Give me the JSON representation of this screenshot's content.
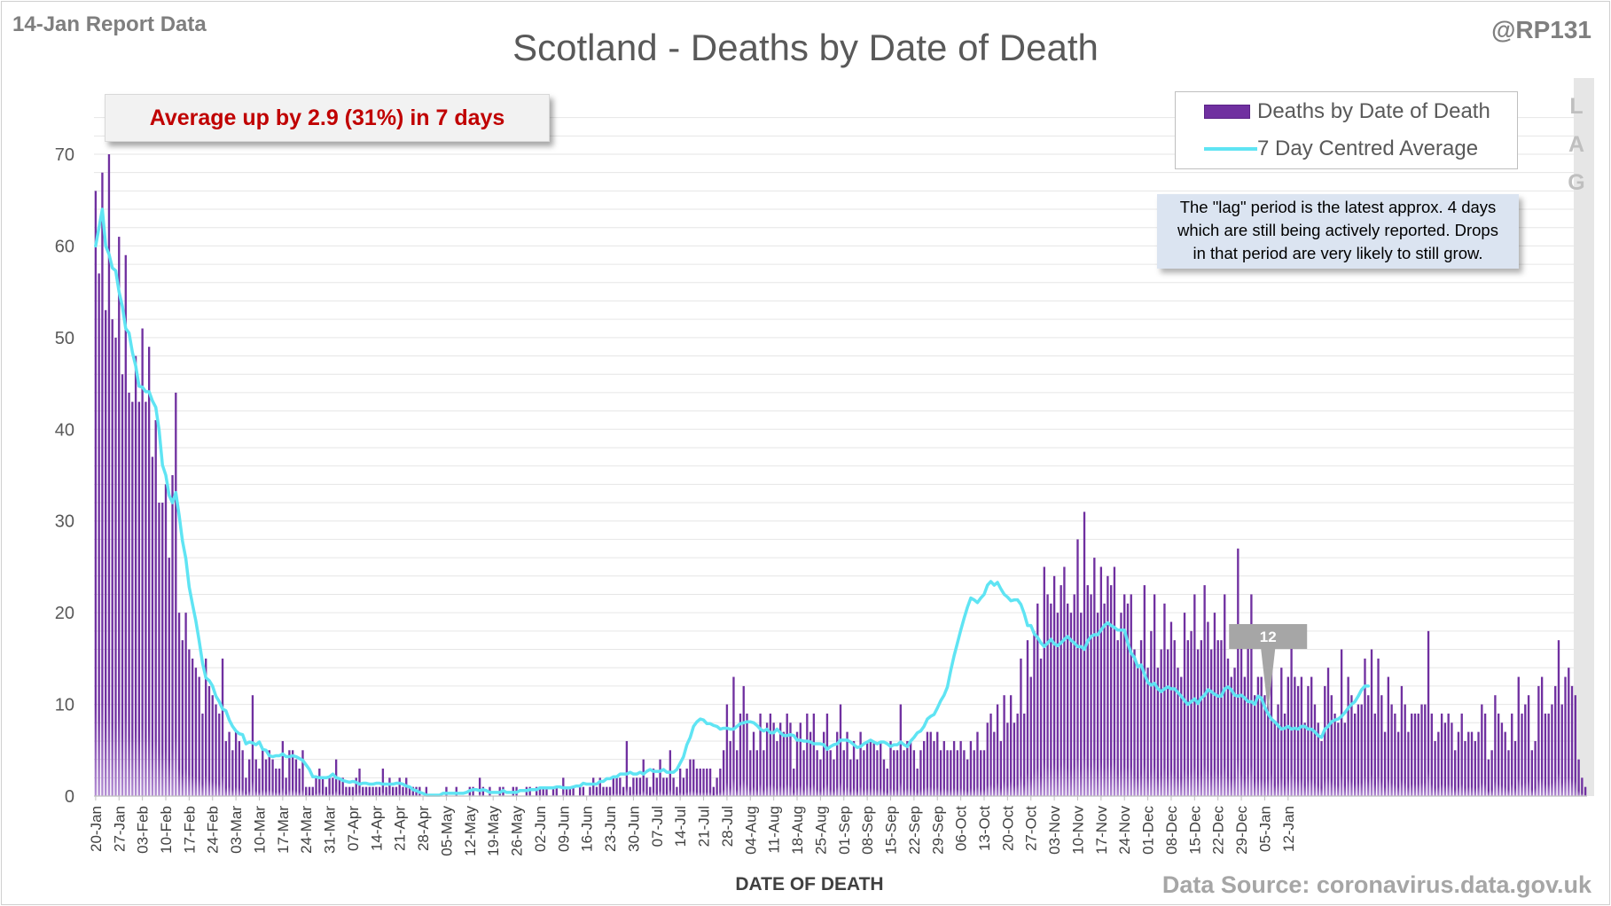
{
  "report_label": "14-Jan Report Data",
  "handle": "@RP131",
  "headline": "Average up by 2.9 (31%) in 7 days",
  "legend": {
    "bar_label": "Deaths by Date of Death",
    "line_label": "7 Day Centred Average"
  },
  "lag_note": {
    "lines": [
      "The \"lag\" period is the latest approx. 4 days",
      "which are still being actively reported. Drops",
      "in that period are very likely to still grow."
    ],
    "letters": [
      "L",
      "A",
      "G"
    ]
  },
  "source": "Data Source: coronavirus.data.gov.uk",
  "colors": {
    "bar": "#7030a0",
    "bar_light": "#b48fd4",
    "line": "#5fe4f3",
    "headline": "#c00000",
    "lag_band": "#e6e6e6",
    "callout": "#a6a6a6"
  },
  "chart_data": {
    "type": "bar",
    "title": "Scotland - Deaths by Date of Death",
    "xlabel": "DATE OF DEATH",
    "ylabel": "",
    "ylim": [
      0,
      75
    ],
    "yticks": [
      0,
      10,
      20,
      30,
      40,
      50,
      60,
      70
    ],
    "grid": true,
    "legend_position": "top-right",
    "x_tick_labels": [
      "20-Jan",
      "27-Jan",
      "03-Feb",
      "10-Feb",
      "17-Feb",
      "24-Feb",
      "03-Mar",
      "10-Mar",
      "17-Mar",
      "24-Mar",
      "31-Mar",
      "07-Apr",
      "14-Apr",
      "21-Apr",
      "28-Apr",
      "05-May",
      "12-May",
      "19-May",
      "26-May",
      "02-Jun",
      "09-Jun",
      "16-Jun",
      "23-Jun",
      "30-Jun",
      "07-Jul",
      "14-Jul",
      "21-Jul",
      "28-Jul",
      "04-Aug",
      "11-Aug",
      "18-Aug",
      "25-Aug",
      "01-Sep",
      "08-Sep",
      "15-Sep",
      "22-Sep",
      "29-Sep",
      "06-Oct",
      "13-Oct",
      "20-Oct",
      "27-Oct",
      "03-Nov",
      "10-Nov",
      "17-Nov",
      "24-Nov",
      "01-Dec",
      "08-Dec",
      "15-Dec",
      "22-Dec",
      "29-Dec",
      "05-Jan",
      "12-Jan"
    ],
    "start_date": "20-Jan",
    "lag_days": 4,
    "callout": {
      "label": "12",
      "date": "05-Jan"
    },
    "series": [
      {
        "name": "Deaths by Date of Death",
        "type": "bar",
        "values": [
          66,
          57,
          68,
          53,
          70,
          52,
          50,
          61,
          46,
          59,
          44,
          43,
          48,
          43,
          51,
          43,
          49,
          37,
          41,
          32,
          32,
          34,
          26,
          35,
          44,
          20,
          17,
          20,
          16,
          15,
          14,
          13,
          9,
          15,
          12,
          11,
          10,
          9,
          15,
          6,
          7,
          5,
          7,
          6,
          5,
          2,
          4,
          11,
          4,
          3,
          5,
          4,
          5,
          4,
          3,
          3,
          6,
          2,
          5,
          5,
          4,
          3,
          5,
          1,
          1,
          1,
          2,
          3,
          2,
          1,
          2,
          2,
          4,
          2,
          2,
          1,
          1,
          1,
          2,
          3,
          1,
          1,
          1,
          1,
          1,
          1,
          3,
          1,
          2,
          1,
          1,
          2,
          1,
          2,
          1,
          1,
          1,
          1,
          0,
          1,
          0,
          0,
          0,
          0,
          0,
          1,
          0,
          0,
          1,
          0,
          0,
          0,
          1,
          1,
          0,
          2,
          1,
          0,
          1,
          0,
          0,
          1,
          1,
          0,
          0,
          1,
          1,
          0,
          0,
          1,
          1,
          0,
          1,
          1,
          1,
          1,
          0,
          1,
          1,
          0,
          2,
          1,
          1,
          1,
          0,
          1,
          1,
          0,
          1,
          2,
          1,
          2,
          1,
          1,
          1,
          2,
          2,
          2,
          1,
          6,
          1,
          2,
          2,
          2,
          4,
          2,
          1,
          3,
          2,
          4,
          2,
          2,
          5,
          2,
          1,
          3,
          2,
          3,
          4,
          4,
          3,
          3,
          3,
          3,
          3,
          1,
          2,
          3,
          5,
          10,
          6,
          13,
          5,
          9,
          12,
          9,
          5,
          7,
          5,
          9,
          5,
          8,
          9,
          8,
          6,
          8,
          7,
          9,
          8,
          3,
          7,
          8,
          5,
          9,
          7,
          9,
          5,
          4,
          7,
          9,
          5,
          4,
          7,
          10,
          5,
          7,
          4,
          6,
          4,
          7,
          5,
          6,
          6,
          6,
          5,
          6,
          4,
          3,
          6,
          5,
          5,
          10,
          5,
          6,
          6,
          5,
          3,
          5,
          6,
          7,
          7,
          6,
          7,
          5,
          6,
          5,
          5,
          6,
          5,
          6,
          5,
          4,
          6,
          5,
          7,
          5,
          5,
          8,
          9,
          7,
          10,
          6,
          11,
          8,
          11,
          8,
          9,
          15,
          9,
          17,
          13,
          18,
          21,
          15,
          25,
          22,
          21,
          24,
          20,
          23,
          25,
          21,
          20,
          22,
          28,
          20,
          31,
          23,
          22,
          26,
          20,
          25,
          21,
          24,
          23,
          25,
          17,
          20,
          22,
          21,
          22,
          16,
          14,
          17,
          23,
          14,
          18,
          22,
          14,
          16,
          21,
          16,
          19,
          17,
          14,
          13,
          20,
          17,
          18,
          22,
          16,
          17,
          23,
          19,
          16,
          20,
          17,
          17,
          22,
          15,
          13,
          14,
          27,
          17,
          13,
          17,
          22,
          11,
          13,
          13,
          11,
          13,
          17,
          8,
          10,
          14,
          9,
          13,
          17,
          13,
          12,
          13,
          8,
          12,
          13,
          10,
          8,
          6,
          12,
          14,
          11,
          9,
          8,
          16,
          8,
          13,
          11,
          9,
          10,
          10,
          15,
          11,
          16,
          9,
          15,
          11,
          7,
          13,
          10,
          9,
          7,
          12,
          10,
          7,
          9,
          9,
          9,
          10,
          10,
          18,
          9,
          6,
          7,
          9,
          8,
          9,
          8,
          5,
          7,
          9,
          6,
          7,
          7,
          6,
          7,
          10,
          9,
          4,
          5,
          11,
          9,
          8,
          7,
          5,
          9,
          6,
          13,
          9,
          10,
          11,
          5,
          6,
          12,
          13,
          9,
          9,
          10,
          12,
          17,
          10,
          13,
          14,
          12,
          11,
          4,
          2,
          1
        ]
      },
      {
        "name": "7 Day Centred Average",
        "type": "line",
        "values": [
          60.0,
          62.0,
          64.0,
          60.0,
          59.1,
          57.6,
          57.3,
          55.0,
          53.4,
          51.0,
          50.5,
          48.4,
          46.9,
          44.7,
          44.6,
          44.1,
          44.1,
          43.1,
          42.4,
          39.9,
          36.1,
          35.0,
          32.8,
          32.0,
          33.1,
          30.6,
          27.8,
          25.9,
          22.8,
          20.9,
          19.1,
          16.9,
          14.5,
          12.9,
          12.6,
          12.0,
          10.9,
          10.3,
          9.5,
          9.3,
          8.3,
          7.6,
          7.1,
          6.8,
          6.7,
          5.7,
          5.9,
          5.8,
          5.6,
          5.9,
          5.1,
          5.0,
          4.4,
          4.3,
          4.4,
          4.4,
          4.6,
          4.3,
          4.3,
          4.4,
          4.3,
          4.1,
          3.9,
          3.4,
          2.9,
          2.1,
          2.1,
          2.0,
          2.0,
          2.0,
          2.1,
          2.4,
          2.0,
          1.9,
          1.7,
          1.6,
          1.5,
          1.6,
          1.5,
          1.3,
          1.4,
          1.4,
          1.3,
          1.3,
          1.4,
          1.4,
          1.3,
          1.3,
          1.3,
          1.3,
          1.4,
          1.4,
          1.3,
          1.1,
          1.0,
          0.7,
          0.6,
          0.4,
          0.3,
          0.1,
          0.1,
          0.1,
          0.1,
          0.1,
          0.3,
          0.3,
          0.3,
          0.3,
          0.3,
          0.3,
          0.3,
          0.4,
          0.6,
          0.7,
          0.7,
          0.6,
          0.7,
          0.6,
          0.4,
          0.4,
          0.4,
          0.4,
          0.6,
          0.4,
          0.4,
          0.4,
          0.4,
          0.6,
          0.6,
          0.6,
          0.7,
          0.7,
          0.7,
          0.9,
          0.9,
          0.9,
          0.9,
          0.9,
          1.0,
          1.0,
          0.9,
          0.9,
          0.9,
          1.0,
          1.1,
          1.1,
          1.4,
          1.3,
          1.3,
          1.3,
          1.3,
          1.6,
          1.6,
          1.9,
          1.9,
          2.1,
          2.1,
          2.4,
          2.4,
          2.4,
          2.6,
          2.4,
          2.4,
          2.6,
          2.4,
          2.7,
          2.9,
          2.7,
          2.7,
          2.7,
          2.9,
          2.6,
          2.6,
          2.6,
          2.9,
          3.6,
          4.3,
          5.6,
          6.4,
          7.6,
          8.1,
          8.4,
          8.3,
          7.9,
          7.9,
          7.7,
          7.6,
          7.3,
          7.4,
          7.4,
          7.3,
          7.3,
          7.6,
          7.9,
          8.0,
          8.1,
          8.1,
          8.0,
          7.7,
          7.3,
          7.1,
          7.3,
          6.9,
          6.9,
          7.3,
          6.9,
          6.6,
          6.6,
          6.7,
          6.6,
          6.1,
          6.1,
          6.0,
          6.0,
          5.9,
          5.7,
          5.7,
          5.7,
          5.6,
          5.1,
          5.4,
          5.6,
          5.7,
          6.1,
          6.1,
          6.1,
          5.9,
          5.6,
          5.3,
          5.4,
          5.7,
          5.9,
          6.1,
          5.9,
          5.7,
          5.9,
          5.9,
          5.7,
          5.4,
          5.6,
          5.6,
          5.9,
          5.6,
          5.4,
          6.0,
          6.4,
          6.9,
          7.1,
          7.6,
          8.4,
          8.7,
          8.9,
          9.6,
          10.4,
          11.0,
          11.9,
          13.7,
          15.3,
          16.7,
          18.1,
          19.4,
          20.6,
          21.6,
          21.4,
          21.1,
          21.6,
          22.0,
          23.0,
          23.4,
          23.0,
          23.3,
          22.6,
          22.0,
          21.7,
          21.3,
          21.4,
          21.4,
          20.9,
          19.9,
          18.6,
          18.6,
          17.7,
          17.3,
          16.7,
          16.3,
          16.7,
          17.1,
          16.6,
          16.4,
          16.7,
          17.1,
          17.4,
          17.0,
          16.7,
          16.3,
          16.3,
          16.0,
          16.9,
          17.4,
          17.6,
          17.6,
          18.1,
          18.6,
          18.9,
          18.6,
          18.4,
          18.1,
          18.1,
          18.1,
          16.7,
          15.6,
          15.1,
          14.1,
          14.3,
          13.3,
          12.4,
          12.1,
          12.3,
          11.7,
          11.4,
          11.7,
          11.9,
          11.7,
          11.7,
          11.3,
          10.9,
          10.4,
          10.0,
          10.3,
          10.6,
          10.1,
          10.7,
          11.0,
          11.6,
          11.4,
          11.1,
          10.9,
          10.9,
          11.7,
          11.9,
          11.6,
          11.0,
          10.9,
          11.0,
          10.7,
          10.3,
          10.3,
          10.0,
          10.9,
          10.7,
          9.7,
          9.0,
          8.4,
          8.1,
          7.7,
          7.3,
          7.4,
          7.6,
          7.3,
          7.4,
          7.3,
          7.6,
          7.6,
          7.3,
          7.3,
          7.0,
          6.6,
          6.4,
          7.3,
          7.6,
          8.1,
          8.3,
          8.4,
          8.7,
          9.1,
          9.6,
          10.0,
          10.3,
          10.9,
          11.6,
          12.0,
          12.0
        ]
      }
    ]
  }
}
